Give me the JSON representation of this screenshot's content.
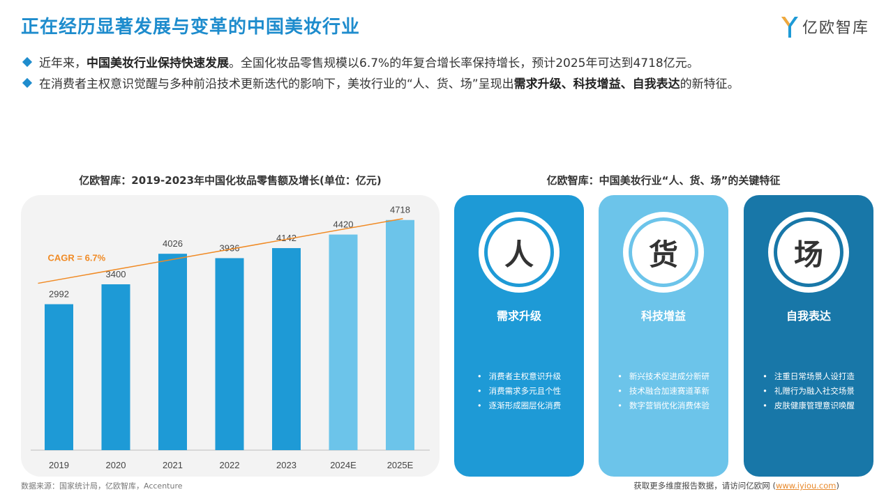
{
  "header": {
    "title": "正在经历显著发展与变革的中国美妆行业",
    "logo_text": "亿欧智库"
  },
  "bullets": [
    {
      "pre": "近年来，",
      "bold": "中国美妆行业保持快速发展",
      "post": "。全国化妆品零售规模以6.7%的年复合增长率保持增长，预计2025年可达到4718亿元。"
    },
    {
      "pre": "在消费者主权意识觉醒与多种前沿技术更新迭代的影响下，美妆行业的“人、货、场”呈现出",
      "bold": "需求升级、科技增益、自我表达",
      "post": "的新特征。"
    }
  ],
  "chart_data": {
    "type": "bar",
    "title": "亿欧智库：2019-2023年中国化妆品零售额及增长(单位：亿元)",
    "categories": [
      "2019",
      "2020",
      "2021",
      "2022",
      "2023",
      "2024E",
      "2025E"
    ],
    "values": [
      2992,
      3400,
      4026,
      3936,
      4142,
      4420,
      4718
    ],
    "forecast": [
      false,
      false,
      false,
      false,
      false,
      true,
      true
    ],
    "colors": {
      "actual": "#1e9ad6",
      "forecast": "#6cc4ea",
      "trend": "#f08a24"
    },
    "annotation": "CAGR = 6.7%",
    "ylim": [
      0,
      5000
    ],
    "grid": false
  },
  "cards": {
    "title": "亿欧智库：中国美妆行业“人、货、场”的关键特征",
    "items": [
      {
        "char": "人",
        "heading": "需求升级",
        "points": [
          "消费者主权意识升级",
          "消费需求多元且个性",
          "逐渐形成圈层化消费"
        ]
      },
      {
        "char": "货",
        "heading": "科技增益",
        "points": [
          "新兴技术促进成分新研",
          "技术融合加速赛道革新",
          "数字营销优化消费体验"
        ]
      },
      {
        "char": "场",
        "heading": "自我表达",
        "points": [
          "注重日常场景人设打造",
          "礼赠行为融入社交场景",
          "皮肤健康管理意识唤醒"
        ]
      }
    ]
  },
  "source": "数据来源：国家统计局，亿欧智库，Accenture",
  "footer": {
    "pre": "获取更多维度报告数据，请访问亿欧网 (",
    "link": "www.iyiou.com",
    "post": ")"
  }
}
